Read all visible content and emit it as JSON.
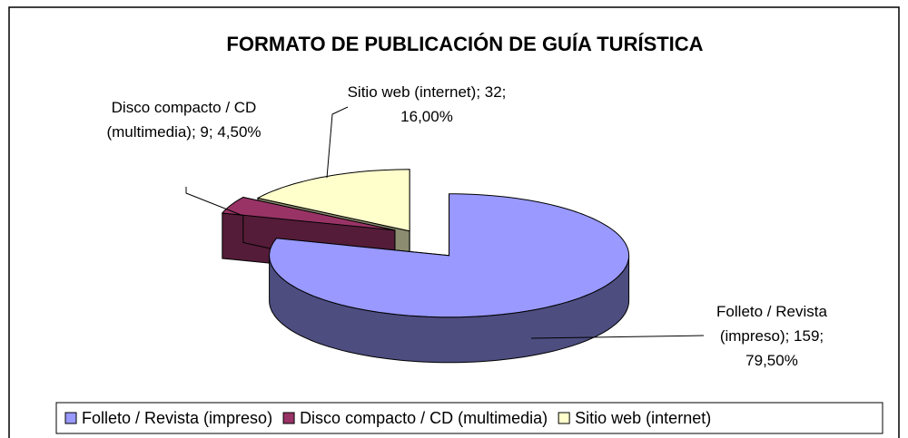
{
  "chart_data": {
    "type": "pie",
    "title": "FORMATO DE PUBLICACIÓN DE GUÍA TURÍSTICA",
    "categories": [
      "Folleto / Revista (impreso)",
      "Disco compacto / CD (multimedia)",
      "Sitio web (internet)"
    ],
    "values": [
      159,
      9,
      32
    ],
    "value_labels": [
      "Folleto / Revista (impreso); 159; 79,50%",
      "Disco compacto / CD (multimedia); 9; 4,50%",
      "Sitio web (internet); 32; 16,00%"
    ],
    "colors": [
      "#9999ff",
      "#993366",
      "#ffffcc"
    ],
    "legend": "bottom"
  }
}
